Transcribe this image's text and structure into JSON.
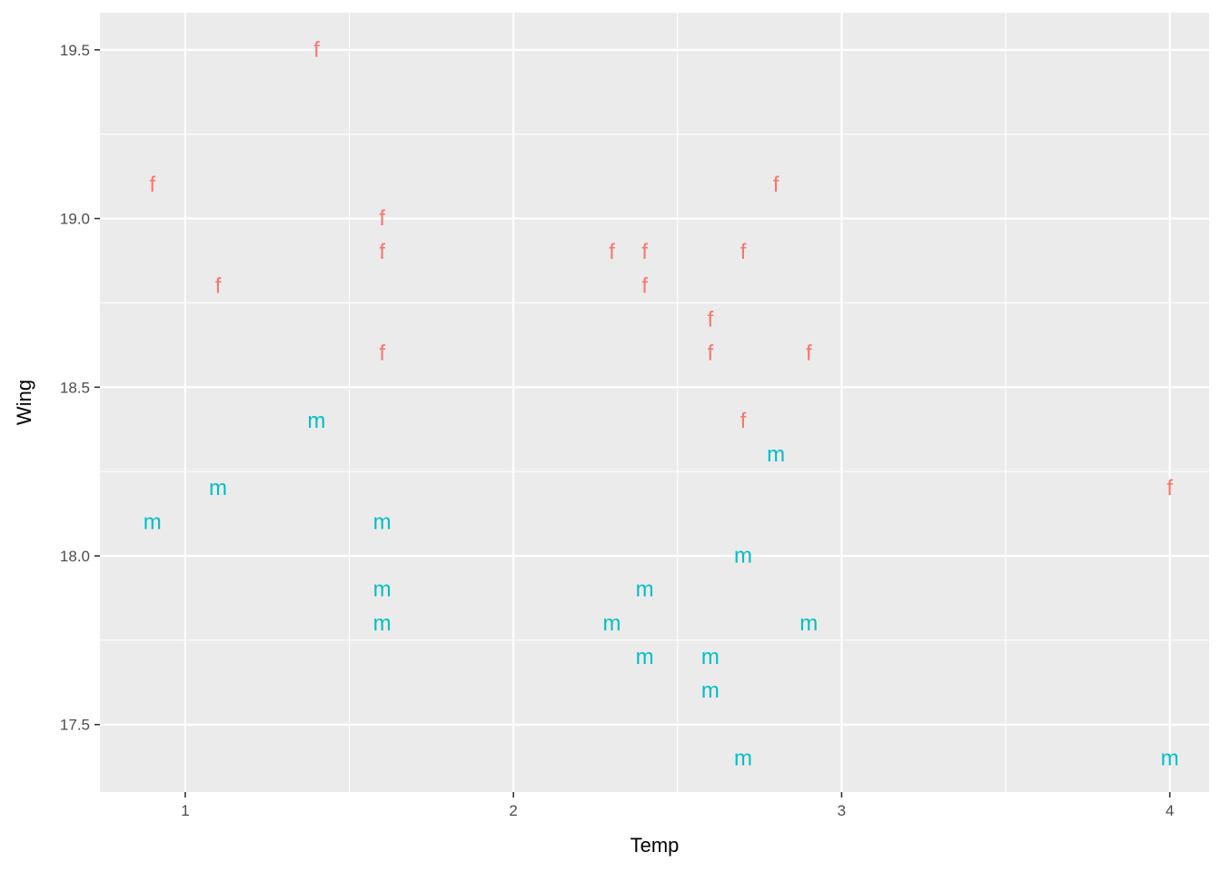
{
  "chart_data": {
    "type": "scatter",
    "title": "",
    "xlabel": "Temp",
    "ylabel": "Wing",
    "xlim": [
      0.74,
      4.12
    ],
    "ylim": [
      17.3,
      19.61
    ],
    "x_ticks": [
      1,
      2,
      3,
      4
    ],
    "x_tick_labels": [
      "1",
      "2",
      "3",
      "4"
    ],
    "x_minor_ticks": [
      1.5,
      2.5,
      3.5
    ],
    "y_ticks": [
      17.5,
      18.0,
      18.5,
      19.0,
      19.5
    ],
    "y_tick_labels": [
      "17.5",
      "18.0",
      "18.5",
      "19.0",
      "19.5"
    ],
    "y_minor_ticks": [
      17.75,
      18.25,
      18.75,
      19.25
    ],
    "grid": true,
    "legend": "none",
    "point_glyph": "series label text",
    "colors": {
      "f": "#F8766D",
      "m": "#00BFC4",
      "panel": "#EBEBEB",
      "grid": "#FFFFFF"
    },
    "series": [
      {
        "name": "f",
        "points": [
          [
            0.9,
            19.1
          ],
          [
            1.1,
            18.8
          ],
          [
            1.4,
            19.5
          ],
          [
            1.6,
            19.0
          ],
          [
            1.6,
            18.9
          ],
          [
            1.6,
            18.6
          ],
          [
            2.3,
            18.9
          ],
          [
            2.4,
            18.9
          ],
          [
            2.4,
            18.8
          ],
          [
            2.6,
            18.7
          ],
          [
            2.6,
            18.6
          ],
          [
            2.7,
            18.9
          ],
          [
            2.7,
            18.4
          ],
          [
            2.8,
            19.1
          ],
          [
            2.9,
            18.6
          ],
          [
            4.0,
            18.2
          ]
        ]
      },
      {
        "name": "m",
        "points": [
          [
            0.9,
            18.1
          ],
          [
            1.1,
            18.2
          ],
          [
            1.4,
            18.4
          ],
          [
            1.6,
            18.1
          ],
          [
            1.6,
            17.9
          ],
          [
            1.6,
            17.8
          ],
          [
            2.3,
            17.8
          ],
          [
            2.4,
            17.9
          ],
          [
            2.4,
            17.7
          ],
          [
            2.6,
            17.7
          ],
          [
            2.6,
            17.6
          ],
          [
            2.7,
            18.0
          ],
          [
            2.7,
            17.4
          ],
          [
            2.8,
            18.3
          ],
          [
            2.9,
            17.8
          ],
          [
            4.0,
            17.4
          ]
        ]
      }
    ]
  }
}
